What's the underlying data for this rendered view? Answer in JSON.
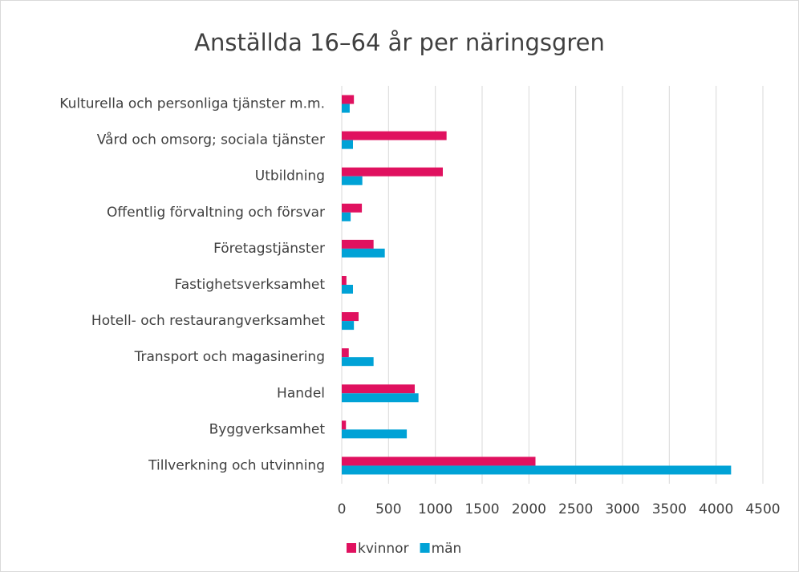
{
  "chart_data": {
    "type": "bar",
    "orientation": "horizontal",
    "title": "Anställda 16–64 år per näringsgren",
    "categories": [
      "Kulturella och personliga tjänster m.m.",
      "Vård och omsorg; sociala tjänster",
      "Utbildning",
      "Offentlig förvaltning och försvar",
      "Företagstjänster",
      "Fastighetsverksamhet",
      "Hotell- och restaurangverksamhet",
      "Transport och magasinering",
      "Handel",
      "Byggverksamhet",
      "Tillverkning och utvinning"
    ],
    "series": [
      {
        "name": "kvinnor",
        "color": "#e0115f",
        "values": [
          130,
          1120,
          1080,
          215,
          340,
          50,
          180,
          75,
          780,
          45,
          2070
        ]
      },
      {
        "name": "män",
        "color": "#00a2d6",
        "values": [
          85,
          120,
          220,
          95,
          460,
          120,
          130,
          340,
          820,
          695,
          4160
        ]
      }
    ],
    "xlim": [
      0,
      4500
    ],
    "xticks": [
      0,
      500,
      1000,
      1500,
      2000,
      2500,
      3000,
      3500,
      4000,
      4500
    ],
    "grid": true,
    "legend": "bottom"
  }
}
